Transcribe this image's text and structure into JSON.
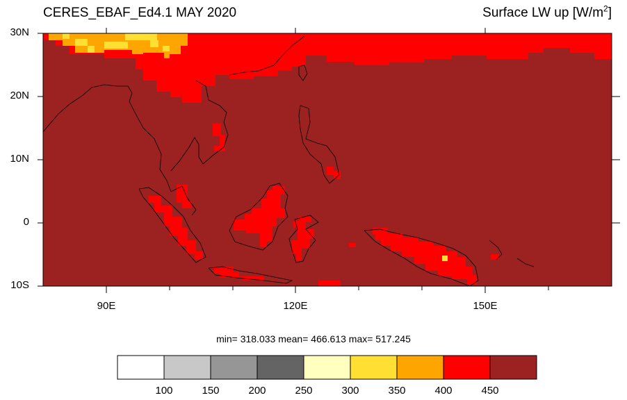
{
  "header": {
    "title_left": "CERES_EBAF_Ed4.1 MAY 2020",
    "title_right_prefix": "Surface LW up [W/m",
    "title_right_sup": "2",
    "title_right_suffix": "]"
  },
  "map": {
    "lon_range": [
      80,
      170
    ],
    "lat_range": [
      -10,
      30
    ],
    "background_color": "#9c2222",
    "lat_tick_labels": [
      {
        "lat": 30,
        "label": "30N"
      },
      {
        "lat": 20,
        "label": "20N"
      },
      {
        "lat": 10,
        "label": "10N"
      },
      {
        "lat": 0,
        "label": "0"
      },
      {
        "lat": -10,
        "label": "10S"
      }
    ],
    "lon_tick_labels": [
      {
        "lon": 90,
        "label": "90E"
      },
      {
        "lon": 120,
        "label": "120E"
      },
      {
        "lon": 150,
        "label": "150E"
      }
    ]
  },
  "stats": {
    "text": "min= 318.033  mean= 466.613  max= 517.245"
  },
  "colorbar": {
    "colors": [
      "#ffffff",
      "#c8c8c8",
      "#969696",
      "#646464",
      "#ffffc0",
      "#ffe032",
      "#ffa500",
      "#ff0000",
      "#9c2222"
    ],
    "labels": [
      "100",
      "150",
      "200",
      "250",
      "300",
      "350",
      "400",
      "450"
    ]
  }
}
